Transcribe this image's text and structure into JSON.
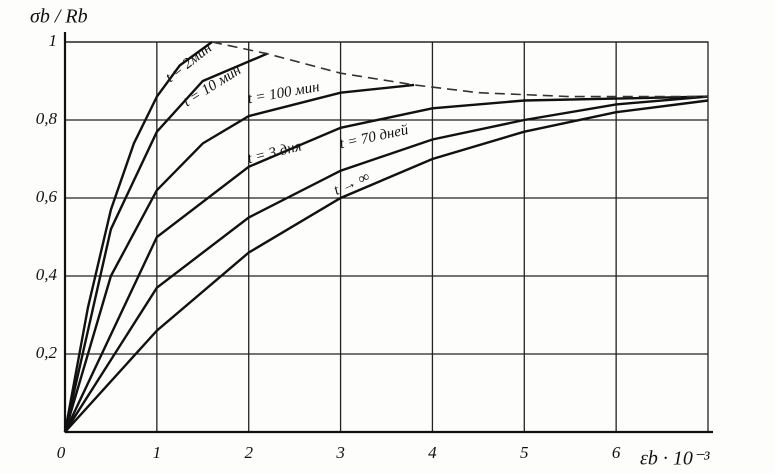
{
  "chart_data": {
    "type": "line",
    "y_label": "σb / Rb",
    "x_label": "εb · 10⁻³",
    "xlim": [
      0,
      7
    ],
    "ylim": [
      0,
      1
    ],
    "xticks": [
      0,
      1,
      2,
      3,
      4,
      5,
      6
    ],
    "yticks": [
      {
        "value": 0.2,
        "label": "0,2"
      },
      {
        "value": 0.4,
        "label": "0,4"
      },
      {
        "value": 0.6,
        "label": "0,6"
      },
      {
        "value": 0.8,
        "label": "0,8"
      },
      1
    ],
    "grid": true,
    "series": [
      {
        "name": "t = 2мин",
        "color": "#111111",
        "x": [
          0,
          0.25,
          0.5,
          0.75,
          1.0,
          1.25,
          1.6
        ],
        "values": [
          0,
          0.32,
          0.57,
          0.74,
          0.86,
          0.94,
          1.0
        ]
      },
      {
        "name": "t = 10 мин",
        "color": "#111111",
        "x": [
          0,
          0.5,
          1.0,
          1.5,
          2.2
        ],
        "values": [
          0,
          0.52,
          0.77,
          0.9,
          0.97
        ]
      },
      {
        "name": "t = 100 мин",
        "color": "#111111",
        "x": [
          0,
          0.5,
          1,
          1.5,
          2,
          3,
          3.8
        ],
        "values": [
          0,
          0.4,
          0.62,
          0.74,
          0.81,
          0.87,
          0.89
        ]
      },
      {
        "name": "t = 3 дня",
        "color": "#111111",
        "x": [
          0,
          1,
          2,
          3,
          4,
          5,
          6,
          7
        ],
        "values": [
          0,
          0.5,
          0.68,
          0.78,
          0.83,
          0.85,
          0.855,
          0.86
        ]
      },
      {
        "name": "t = 70 дней",
        "color": "#111111",
        "x": [
          0,
          1,
          2,
          3,
          4,
          5,
          6,
          7
        ],
        "values": [
          0,
          0.37,
          0.55,
          0.67,
          0.75,
          0.8,
          0.84,
          0.86
        ]
      },
      {
        "name": "t → ∞",
        "color": "#111111",
        "x": [
          0,
          1,
          2,
          3,
          4,
          5,
          6,
          7
        ],
        "values": [
          0,
          0.26,
          0.46,
          0.6,
          0.7,
          0.77,
          0.82,
          0.85
        ]
      },
      {
        "color": "#333333",
        "dashed": true,
        "x": [
          1.6,
          2.2,
          3,
          3.8,
          4.5,
          5.5,
          7
        ],
        "values": [
          1.0,
          0.97,
          0.92,
          0.89,
          0.87,
          0.86,
          0.86
        ]
      }
    ]
  }
}
